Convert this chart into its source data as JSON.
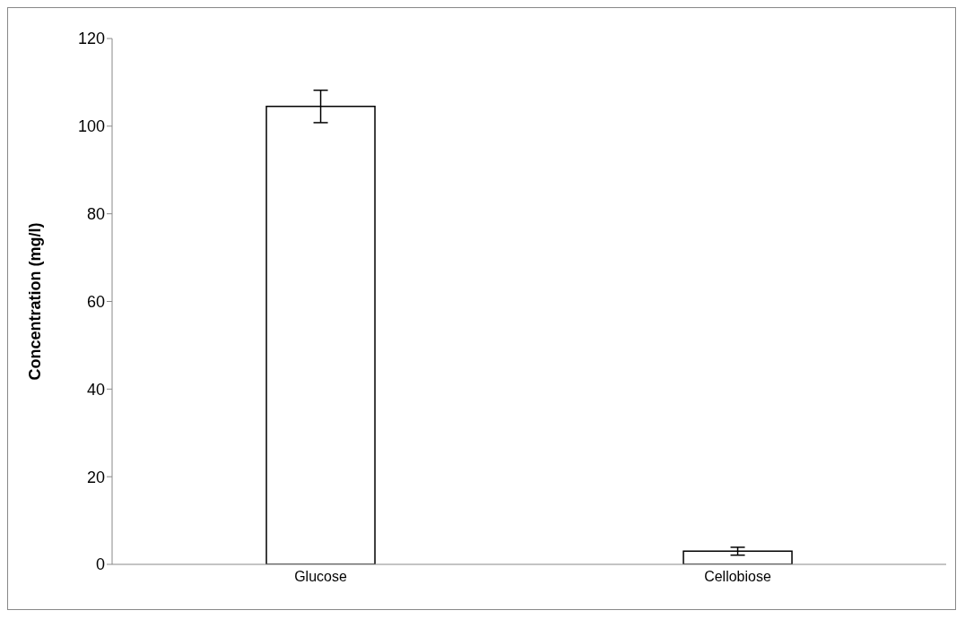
{
  "chart_data": {
    "type": "bar",
    "ylabel": "Concentration (mg/l)",
    "categories": [
      "Glucose",
      "Cellobiose"
    ],
    "values": [
      104.5,
      3.0
    ],
    "errors": [
      3.7,
      0.9
    ],
    "color": "#ffffff",
    "ylim": [
      0,
      120
    ],
    "yticks": [
      0,
      20,
      40,
      60,
      80,
      100,
      120
    ],
    "grid": false,
    "legend": false
  }
}
